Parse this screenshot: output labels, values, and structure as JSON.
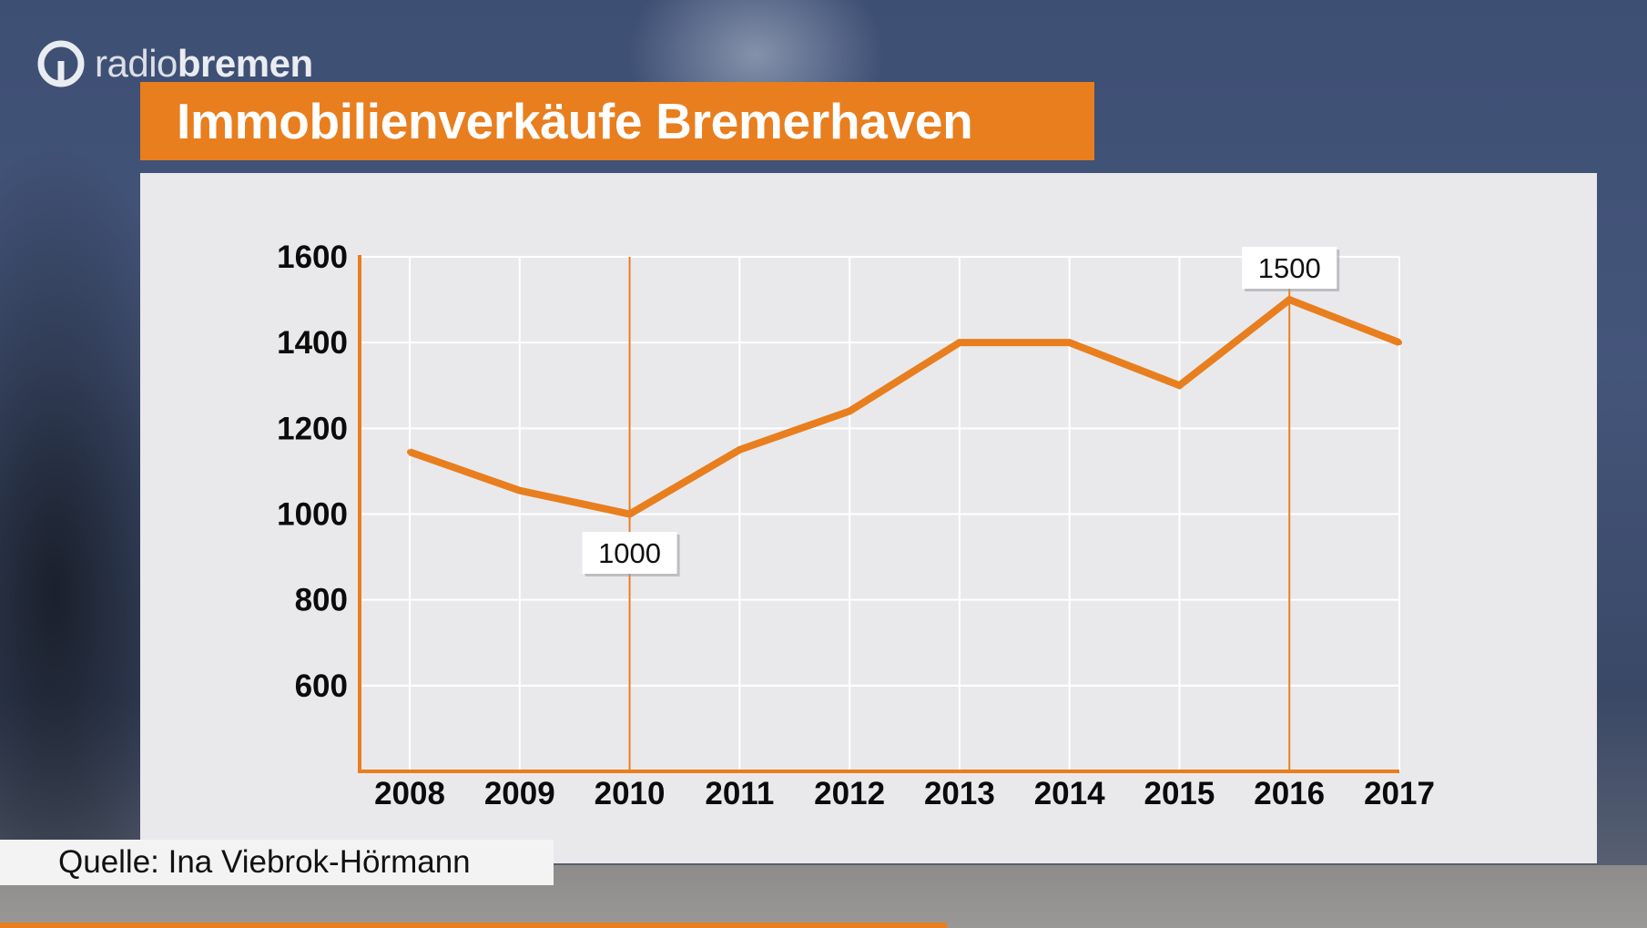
{
  "logo": {
    "light": "radio",
    "bold": "bremen"
  },
  "title": "Immobilienverkäufe Bremerhaven",
  "source": "Quelle: Ina Viebrok-Hörmann",
  "colors": {
    "accent": "#e87e1e",
    "panel": "#e9e9ec",
    "grid": "#ffffff"
  },
  "chart_data": {
    "type": "line",
    "title": "Immobilienverkäufe Bremerhaven",
    "x": [
      "2008",
      "2009",
      "2010",
      "2011",
      "2012",
      "2013",
      "2014",
      "2015",
      "2016",
      "2017"
    ],
    "series": [
      {
        "values": [
          1145,
          1055,
          1000,
          1150,
          1240,
          1400,
          1400,
          1300,
          1500,
          1400
        ]
      }
    ],
    "ylim": [
      400,
      1600
    ],
    "yticks": [
      600,
      800,
      1000,
      1200,
      1400,
      1600
    ],
    "grid": true,
    "annotations": [
      {
        "x": "2010",
        "y": 1000,
        "label": "1000",
        "position": "below"
      },
      {
        "x": "2016",
        "y": 1500,
        "label": "1500",
        "position": "above"
      }
    ],
    "xlabel": "",
    "ylabel": ""
  }
}
